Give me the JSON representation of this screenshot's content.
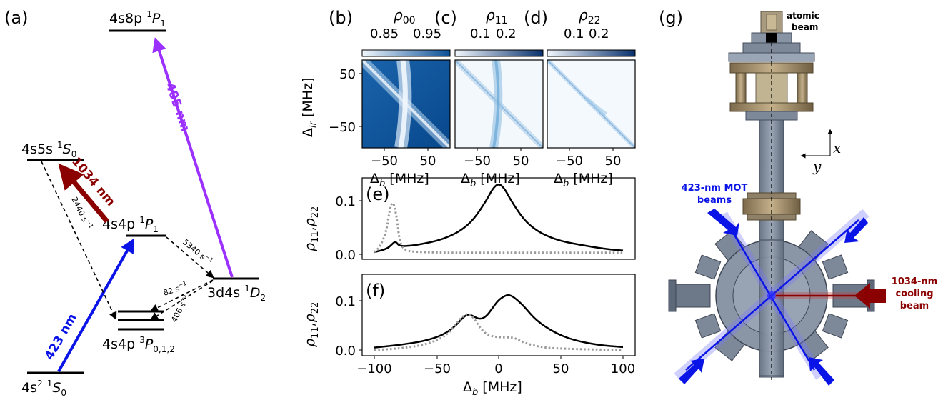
{
  "panels": {
    "a": "(a)",
    "b": "(b)",
    "c": "(c)",
    "d": "(d)",
    "e": "(e)",
    "f": "(f)",
    "g": "(g)"
  },
  "level_diagram": {
    "levels": [
      {
        "base": "4s8p ",
        "sup": "1",
        "term": "P",
        "sub": "1"
      },
      {
        "base": "4s5s ",
        "sup": "1",
        "term": "S",
        "sub": "0"
      },
      {
        "base": "4s4p ",
        "sup": "1",
        "term": "P",
        "sub": "1"
      },
      {
        "base": "3d4s ",
        "sup": "1",
        "term": "D",
        "sub": "2"
      },
      {
        "base": "4s4p ",
        "sup": "3",
        "term": "P",
        "sub": "0,1,2"
      },
      {
        "base": "4s",
        "exp": "2",
        "mid": " ",
        "sup": "1",
        "term": "S",
        "sub": "0"
      }
    ],
    "transitions": [
      {
        "label": "405 nm",
        "color": "#9b30ff"
      },
      {
        "label": "1034 nm",
        "color": "#8b0000"
      },
      {
        "label": "423 nm",
        "color": "#0a14e6"
      }
    ],
    "decay_rates": [
      {
        "value": "2440 s",
        "exp": "−1"
      },
      {
        "value": "5340 s",
        "exp": "−1"
      },
      {
        "value": "82 s",
        "exp": "−1"
      },
      {
        "value": "406 s",
        "exp": "−1"
      }
    ]
  },
  "heatmaps": [
    {
      "sym": "ρ",
      "sub": "00",
      "ticks": [
        "0.85",
        "0.95"
      ]
    },
    {
      "sym": "ρ",
      "sub": "11",
      "ticks": [
        "0.1",
        "0.2"
      ]
    },
    {
      "sym": "ρ",
      "sub": "22",
      "ticks": [
        "0.1",
        "0.2"
      ]
    }
  ],
  "heatmap_axes": {
    "ylabel": {
      "sym": "Δ",
      "sub": "ir",
      "unit": " [MHz]"
    },
    "xlabel": {
      "sym": "Δ",
      "sub": "b",
      "unit": " [MHz]"
    },
    "xticks": [
      "−50",
      "50"
    ],
    "yticks": [
      "50",
      "−50"
    ]
  },
  "line_plots": {
    "ylabel": {
      "p1": "ρ",
      "s1": "11",
      "comma": ",",
      "p2": "ρ",
      "s2": "22"
    },
    "e_yticks": [
      "0.1",
      "0.0"
    ],
    "f_yticks": [
      "0.1",
      "0.0"
    ],
    "xticks": [
      "−100",
      "−50",
      "0",
      "50",
      "100"
    ],
    "xlabel": {
      "sym": "Δ",
      "sub": "b",
      "unit": " [MHz]"
    }
  },
  "apparatus": {
    "atomic_beam": [
      "atomic",
      "beam"
    ],
    "mot": [
      "423-nm MOT",
      "beams"
    ],
    "cooling": [
      "1034-nm",
      "cooling",
      "beam"
    ],
    "axes": {
      "x": "x",
      "y": "y"
    }
  },
  "chart_data": [
    {
      "type": "line",
      "panel": "(e)",
      "xlim": [
        -100,
        100
      ],
      "ylim": [
        0,
        0.13
      ],
      "series": [
        {
          "style": "solid",
          "color": "#000000",
          "x": [
            -100,
            -90,
            -86,
            -83,
            -80,
            -70,
            -60,
            -50,
            -40,
            -30,
            -20,
            -10,
            -5,
            0,
            5,
            10,
            20,
            30,
            40,
            50,
            60,
            70,
            80,
            90,
            100
          ],
          "y": [
            0.004,
            0.01,
            0.018,
            0.025,
            0.015,
            0.016,
            0.02,
            0.025,
            0.033,
            0.045,
            0.065,
            0.1,
            0.122,
            0.133,
            0.122,
            0.1,
            0.065,
            0.045,
            0.033,
            0.025,
            0.02,
            0.016,
            0.012,
            0.009,
            0.007
          ]
        },
        {
          "style": "dotted",
          "color": "#999999",
          "x": [
            -100,
            -95,
            -90,
            -88,
            -85,
            -82,
            -80,
            -78,
            -75,
            -70,
            -60,
            -40,
            -20,
            0,
            20,
            40,
            60,
            80,
            100
          ],
          "y": [
            0.004,
            0.015,
            0.045,
            0.08,
            0.102,
            0.07,
            0.03,
            0.015,
            0.008,
            0.005,
            0.004,
            0.003,
            0.003,
            0.003,
            0.003,
            0.003,
            0.003,
            0.003,
            0.003
          ]
        }
      ]
    },
    {
      "type": "line",
      "panel": "(f)",
      "xlim": [
        -100,
        100
      ],
      "ylim": [
        0,
        0.11
      ],
      "series": [
        {
          "style": "solid",
          "color": "#000000",
          "x": [
            -100,
            -80,
            -60,
            -45,
            -35,
            -28,
            -24,
            -20,
            -15,
            -10,
            -5,
            0,
            5,
            8,
            12,
            20,
            30,
            45,
            60,
            80,
            100
          ],
          "y": [
            0.005,
            0.01,
            0.018,
            0.03,
            0.048,
            0.068,
            0.073,
            0.068,
            0.062,
            0.068,
            0.085,
            0.102,
            0.11,
            0.112,
            0.108,
            0.09,
            0.06,
            0.035,
            0.02,
            0.01,
            0.006
          ]
        },
        {
          "style": "dotted",
          "color": "#999999",
          "x": [
            -100,
            -80,
            -60,
            -45,
            -38,
            -32,
            -28,
            -24,
            -20,
            -15,
            -10,
            -5,
            0,
            10,
            15,
            20,
            30,
            40,
            60,
            80,
            100
          ],
          "y": [
            0.0,
            0.003,
            0.01,
            0.025,
            0.04,
            0.06,
            0.07,
            0.074,
            0.065,
            0.045,
            0.032,
            0.028,
            0.026,
            0.026,
            0.022,
            0.015,
            0.008,
            0.004,
            0.002,
            0.001,
            0.0
          ]
        }
      ]
    }
  ]
}
